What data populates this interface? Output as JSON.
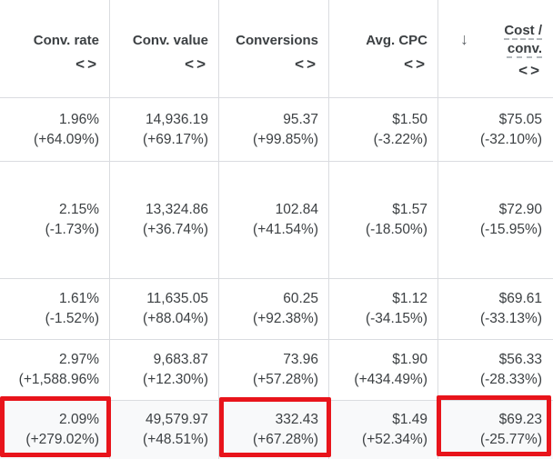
{
  "columns": [
    {
      "label": "Conv. rate",
      "sort_icon": "code-icon"
    },
    {
      "label": "Conv. value",
      "sort_icon": "code-icon"
    },
    {
      "label": "Conversions",
      "sort_icon": "code-icon"
    },
    {
      "label": "Avg. CPC",
      "sort_icon": "code-icon"
    },
    {
      "label_line1": "Cost /",
      "label_line2": "conv.",
      "sort_icon": "code-icon",
      "sorted_icon": "arrow-down-icon",
      "sorted_glyph": "↓"
    }
  ],
  "sort_glyph": "<>",
  "rows": [
    [
      {
        "value": "1.96%",
        "change": "(+64.09%)"
      },
      {
        "value": "14,936.19",
        "change": "(+69.17%)"
      },
      {
        "value": "95.37",
        "change": "(+99.85%)"
      },
      {
        "value": "$1.50",
        "change": "(-3.22%)"
      },
      {
        "value": "$75.05",
        "change": "(-32.10%)"
      }
    ],
    [
      {
        "value": "2.15%",
        "change": "(-1.73%)"
      },
      {
        "value": "13,324.86",
        "change": "(+36.74%)"
      },
      {
        "value": "102.84",
        "change": "(+41.54%)"
      },
      {
        "value": "$1.57",
        "change": "(-18.50%)"
      },
      {
        "value": "$72.90",
        "change": "(-15.95%)"
      }
    ],
    [
      {
        "value": "1.61%",
        "change": "(-1.52%)"
      },
      {
        "value": "11,635.05",
        "change": "(+88.04%)"
      },
      {
        "value": "60.25",
        "change": "(+92.38%)"
      },
      {
        "value": "$1.12",
        "change": "(-34.15%)"
      },
      {
        "value": "$69.61",
        "change": "(-33.13%)"
      }
    ],
    [
      {
        "value": "2.97%",
        "change": "(+1,588.96%"
      },
      {
        "value": "9,683.87",
        "change": "(+12.30%)"
      },
      {
        "value": "73.96",
        "change": "(+57.28%)"
      },
      {
        "value": "$1.90",
        "change": "(+434.49%)"
      },
      {
        "value": "$56.33",
        "change": "(-28.33%)"
      }
    ]
  ],
  "total": [
    {
      "value": "2.09%",
      "change": "(+279.02%)"
    },
    {
      "value": "49,579.97",
      "change": "(+48.51%)"
    },
    {
      "value": "332.43",
      "change": "(+67.28%)"
    },
    {
      "value": "$1.49",
      "change": "(+52.34%)"
    },
    {
      "value": "$69.23",
      "change": "(-25.77%)"
    }
  ],
  "highlight_color": "#e8141b"
}
